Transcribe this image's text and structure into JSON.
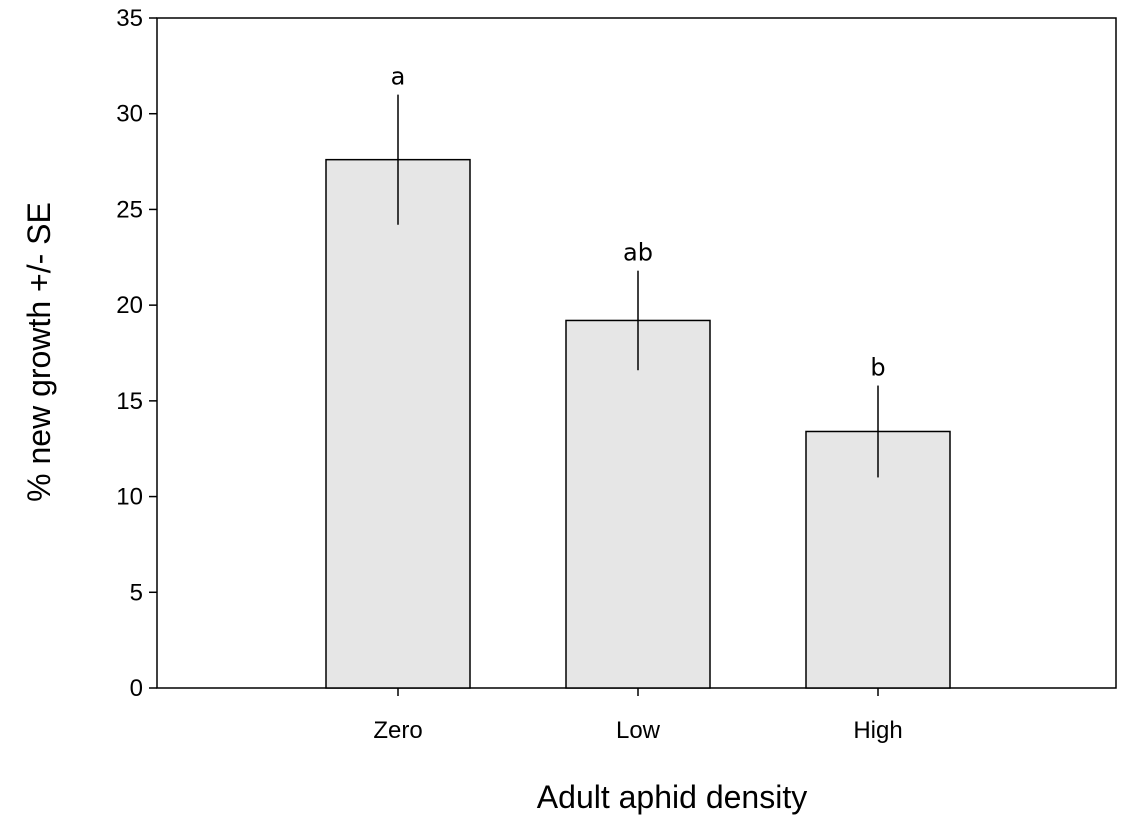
{
  "chart_data": {
    "type": "bar",
    "title": "",
    "xlabel": "Adult aphid density",
    "ylabel": "% new growth +/- SE",
    "categories": [
      "Zero",
      "Low",
      "High"
    ],
    "values": [
      27.6,
      19.2,
      13.4
    ],
    "errors": [
      3.4,
      2.6,
      2.4
    ],
    "significance_labels": [
      "a",
      "ab",
      "b"
    ],
    "ylim": [
      0,
      35
    ],
    "yticks": [
      0,
      5,
      10,
      15,
      20,
      25,
      30,
      35
    ],
    "grid": false,
    "legend": "none",
    "bar_color": "#e6e6e6",
    "edge_color": "#000000"
  }
}
